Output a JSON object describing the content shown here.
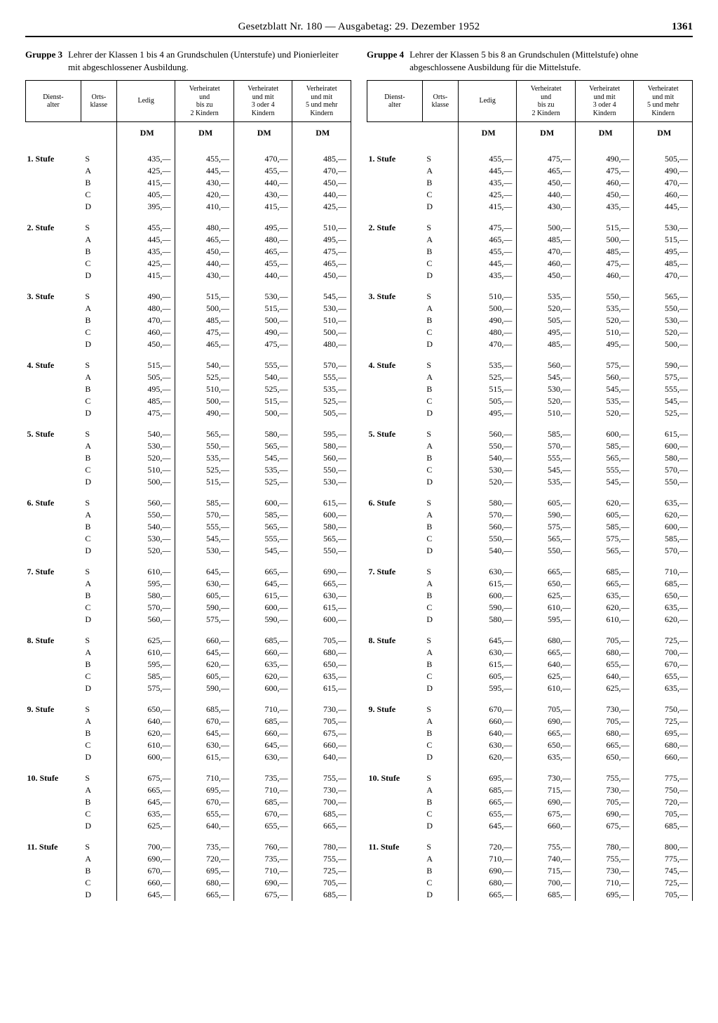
{
  "header": {
    "title": "Gesetzblatt Nr. 180 — Ausgabetag: 29. Dezember 1952",
    "page_number": "1361"
  },
  "currency_label": "DM",
  "columns_header": {
    "dienstalter": "Dienst-\nalter",
    "ortsklasse": "Orts-\nklasse",
    "ledig": "Ledig",
    "verh2": "Verheiratet\nund\nbis zu\n2 Kindern",
    "verh34": "Verheiratet\nund mit\n3 oder 4\nKindern",
    "verh5": "Verheiratet\nund mit\n5 und mehr\nKindern"
  },
  "orts_rows": [
    "S",
    "A",
    "B",
    "C",
    "D"
  ],
  "groups": [
    {
      "gruppe": "Gruppe 3",
      "desc": "Lehrer der Klassen 1 bis 4 an Grundschulen (Unterstufe) und Pionierleiter mit abgeschlossener Ausbildung.",
      "stufen": [
        {
          "label": "1. Stufe",
          "rows": [
            [
              "435,—",
              "455,—",
              "470,—",
              "485,—"
            ],
            [
              "425,—",
              "445,—",
              "455,—",
              "470,—"
            ],
            [
              "415,—",
              "430,—",
              "440,—",
              "450,—"
            ],
            [
              "405,—",
              "420,—",
              "430,—",
              "440,—"
            ],
            [
              "395,—",
              "410,—",
              "415,—",
              "425,—"
            ]
          ]
        },
        {
          "label": "2. Stufe",
          "rows": [
            [
              "455,—",
              "480,—",
              "495,—",
              "510,—"
            ],
            [
              "445,—",
              "465,—",
              "480,—",
              "495,—"
            ],
            [
              "435,—",
              "450,—",
              "465,—",
              "475,—"
            ],
            [
              "425,—",
              "440,—",
              "455,—",
              "465,—"
            ],
            [
              "415,—",
              "430,—",
              "440,—",
              "450,—"
            ]
          ]
        },
        {
          "label": "3. Stufe",
          "rows": [
            [
              "490,—",
              "515,—",
              "530,—",
              "545,—"
            ],
            [
              "480,—",
              "500,—",
              "515,—",
              "530,—"
            ],
            [
              "470,—",
              "485,—",
              "500,—",
              "510,—"
            ],
            [
              "460,—",
              "475,—",
              "490,—",
              "500,—"
            ],
            [
              "450,—",
              "465,—",
              "475,—",
              "480,—"
            ]
          ]
        },
        {
          "label": "4. Stufe",
          "rows": [
            [
              "515,—",
              "540,—",
              "555,—",
              "570,—"
            ],
            [
              "505,—",
              "525,—",
              "540,—",
              "555,—"
            ],
            [
              "495,—",
              "510,—",
              "525,—",
              "535,—"
            ],
            [
              "485,—",
              "500,—",
              "515,—",
              "525,—"
            ],
            [
              "475,—",
              "490,—",
              "500,—",
              "505,—"
            ]
          ]
        },
        {
          "label": "5. Stufe",
          "rows": [
            [
              "540,—",
              "565,—",
              "580,—",
              "595,—"
            ],
            [
              "530,—",
              "550,—",
              "565,—",
              "580,—"
            ],
            [
              "520,—",
              "535,—",
              "545,—",
              "560,—"
            ],
            [
              "510,—",
              "525,—",
              "535,—",
              "550,—"
            ],
            [
              "500,—",
              "515,—",
              "525,—",
              "530,—"
            ]
          ]
        },
        {
          "label": "6. Stufe",
          "rows": [
            [
              "560,—",
              "585,—",
              "600,—",
              "615,—"
            ],
            [
              "550,—",
              "570,—",
              "585,—",
              "600,—"
            ],
            [
              "540,—",
              "555,—",
              "565,—",
              "580,—"
            ],
            [
              "530,—",
              "545,—",
              "555,—",
              "565,—"
            ],
            [
              "520,—",
              "530,—",
              "545,—",
              "550,—"
            ]
          ]
        },
        {
          "label": "7. Stufe",
          "rows": [
            [
              "610,—",
              "645,—",
              "665,—",
              "690,—"
            ],
            [
              "595,—",
              "630,—",
              "645,—",
              "665,—"
            ],
            [
              "580,—",
              "605,—",
              "615,—",
              "630,—"
            ],
            [
              "570,—",
              "590,—",
              "600,—",
              "615,—"
            ],
            [
              "560,—",
              "575,—",
              "590,—",
              "600,—"
            ]
          ]
        },
        {
          "label": "8. Stufe",
          "rows": [
            [
              "625,—",
              "660,—",
              "685,—",
              "705,—"
            ],
            [
              "610,—",
              "645,—",
              "660,—",
              "680,—"
            ],
            [
              "595,—",
              "620,—",
              "635,—",
              "650,—"
            ],
            [
              "585,—",
              "605,—",
              "620,—",
              "635,—"
            ],
            [
              "575,—",
              "590,—",
              "600,—",
              "615,—"
            ]
          ]
        },
        {
          "label": "9. Stufe",
          "rows": [
            [
              "650,—",
              "685,—",
              "710,—",
              "730,—"
            ],
            [
              "640,—",
              "670,—",
              "685,—",
              "705,—"
            ],
            [
              "620,—",
              "645,—",
              "660,—",
              "675,—"
            ],
            [
              "610,—",
              "630,—",
              "645,—",
              "660,—"
            ],
            [
              "600,—",
              "615,—",
              "630,—",
              "640,—"
            ]
          ]
        },
        {
          "label": "10. Stufe",
          "rows": [
            [
              "675,—",
              "710,—",
              "735,—",
              "755,—"
            ],
            [
              "665,—",
              "695,—",
              "710,—",
              "730,—"
            ],
            [
              "645,—",
              "670,—",
              "685,—",
              "700,—"
            ],
            [
              "635,—",
              "655,—",
              "670,—",
              "685,—"
            ],
            [
              "625,—",
              "640,—",
              "655,—",
              "665,—"
            ]
          ]
        },
        {
          "label": "11. Stufe",
          "rows": [
            [
              "700,—",
              "735,—",
              "760,—",
              "780,—"
            ],
            [
              "690,—",
              "720,—",
              "735,—",
              "755,—"
            ],
            [
              "670,—",
              "695,—",
              "710,—",
              "725,—"
            ],
            [
              "660,—",
              "680,—",
              "690,—",
              "705,—"
            ],
            [
              "645,—",
              "665,—",
              "675,—",
              "685,—"
            ]
          ]
        }
      ]
    },
    {
      "gruppe": "Gruppe 4",
      "desc": "Lehrer der Klassen 5 bis 8 an Grundschulen (Mittelstufe) ohne abgeschlossene Ausbildung für die Mittelstufe.",
      "stufen": [
        {
          "label": "1. Stufe",
          "rows": [
            [
              "455,—",
              "475,—",
              "490,—",
              "505,—"
            ],
            [
              "445,—",
              "465,—",
              "475,—",
              "490,—"
            ],
            [
              "435,—",
              "450,—",
              "460,—",
              "470,—"
            ],
            [
              "425,—",
              "440,—",
              "450,—",
              "460,—"
            ],
            [
              "415,—",
              "430,—",
              "435,—",
              "445,—"
            ]
          ]
        },
        {
          "label": "2. Stufe",
          "rows": [
            [
              "475,—",
              "500,—",
              "515,—",
              "530,—"
            ],
            [
              "465,—",
              "485,—",
              "500,—",
              "515,—"
            ],
            [
              "455,—",
              "470,—",
              "485,—",
              "495,—"
            ],
            [
              "445,—",
              "460,—",
              "475,—",
              "485,—"
            ],
            [
              "435,—",
              "450,—",
              "460,—",
              "470,—"
            ]
          ]
        },
        {
          "label": "3. Stufe",
          "rows": [
            [
              "510,—",
              "535,—",
              "550,—",
              "565,—"
            ],
            [
              "500,—",
              "520,—",
              "535,—",
              "550,—"
            ],
            [
              "490,—",
              "505,—",
              "520,—",
              "530,—"
            ],
            [
              "480,—",
              "495,—",
              "510,—",
              "520,—"
            ],
            [
              "470,—",
              "485,—",
              "495,—",
              "500,—"
            ]
          ]
        },
        {
          "label": "4. Stufe",
          "rows": [
            [
              "535,—",
              "560,—",
              "575,—",
              "590,—"
            ],
            [
              "525,—",
              "545,—",
              "560,—",
              "575,—"
            ],
            [
              "515,—",
              "530,—",
              "545,—",
              "555,—"
            ],
            [
              "505,—",
              "520,—",
              "535,—",
              "545,—"
            ],
            [
              "495,—",
              "510,—",
              "520,—",
              "525,—"
            ]
          ]
        },
        {
          "label": "5. Stufe",
          "rows": [
            [
              "560,—",
              "585,—",
              "600,—",
              "615,—"
            ],
            [
              "550,—",
              "570,—",
              "585,—",
              "600,—"
            ],
            [
              "540,—",
              "555,—",
              "565,—",
              "580,—"
            ],
            [
              "530,—",
              "545,—",
              "555,—",
              "570,—"
            ],
            [
              "520,—",
              "535,—",
              "545,—",
              "550,—"
            ]
          ]
        },
        {
          "label": "6. Stufe",
          "rows": [
            [
              "580,—",
              "605,—",
              "620,—",
              "635,—"
            ],
            [
              "570,—",
              "590,—",
              "605,—",
              "620,—"
            ],
            [
              "560,—",
              "575,—",
              "585,—",
              "600,—"
            ],
            [
              "550,—",
              "565,—",
              "575,—",
              "585,—"
            ],
            [
              "540,—",
              "550,—",
              "565,—",
              "570,—"
            ]
          ]
        },
        {
          "label": "7. Stufe",
          "rows": [
            [
              "630,—",
              "665,—",
              "685,—",
              "710,—"
            ],
            [
              "615,—",
              "650,—",
              "665,—",
              "685,—"
            ],
            [
              "600,—",
              "625,—",
              "635,—",
              "650,—"
            ],
            [
              "590,—",
              "610,—",
              "620,—",
              "635,—"
            ],
            [
              "580,—",
              "595,—",
              "610,—",
              "620,—"
            ]
          ]
        },
        {
          "label": "8. Stufe",
          "rows": [
            [
              "645,—",
              "680,—",
              "705,—",
              "725,—"
            ],
            [
              "630,—",
              "665,—",
              "680,—",
              "700,—"
            ],
            [
              "615,—",
              "640,—",
              "655,—",
              "670,—"
            ],
            [
              "605,—",
              "625,—",
              "640,—",
              "655,—"
            ],
            [
              "595,—",
              "610,—",
              "625,—",
              "635,—"
            ]
          ]
        },
        {
          "label": "9. Stufe",
          "rows": [
            [
              "670,—",
              "705,—",
              "730,—",
              "750,—"
            ],
            [
              "660,—",
              "690,—",
              "705,—",
              "725,—"
            ],
            [
              "640,—",
              "665,—",
              "680,—",
              "695,—"
            ],
            [
              "630,—",
              "650,—",
              "665,—",
              "680,—"
            ],
            [
              "620,—",
              "635,—",
              "650,—",
              "660,—"
            ]
          ]
        },
        {
          "label": "10. Stufe",
          "rows": [
            [
              "695,—",
              "730,—",
              "755,—",
              "775,—"
            ],
            [
              "685,—",
              "715,—",
              "730,—",
              "750,—"
            ],
            [
              "665,—",
              "690,—",
              "705,—",
              "720,—"
            ],
            [
              "655,—",
              "675,—",
              "690,—",
              "705,—"
            ],
            [
              "645,—",
              "660,—",
              "675,—",
              "685,—"
            ]
          ]
        },
        {
          "label": "11. Stufe",
          "rows": [
            [
              "720,—",
              "755,—",
              "780,—",
              "800,—"
            ],
            [
              "710,—",
              "740,—",
              "755,—",
              "775,—"
            ],
            [
              "690,—",
              "715,—",
              "730,—",
              "745,—"
            ],
            [
              "680,—",
              "700,—",
              "710,—",
              "725,—"
            ],
            [
              "665,—",
              "685,—",
              "695,—",
              "705,—"
            ]
          ]
        }
      ]
    }
  ]
}
